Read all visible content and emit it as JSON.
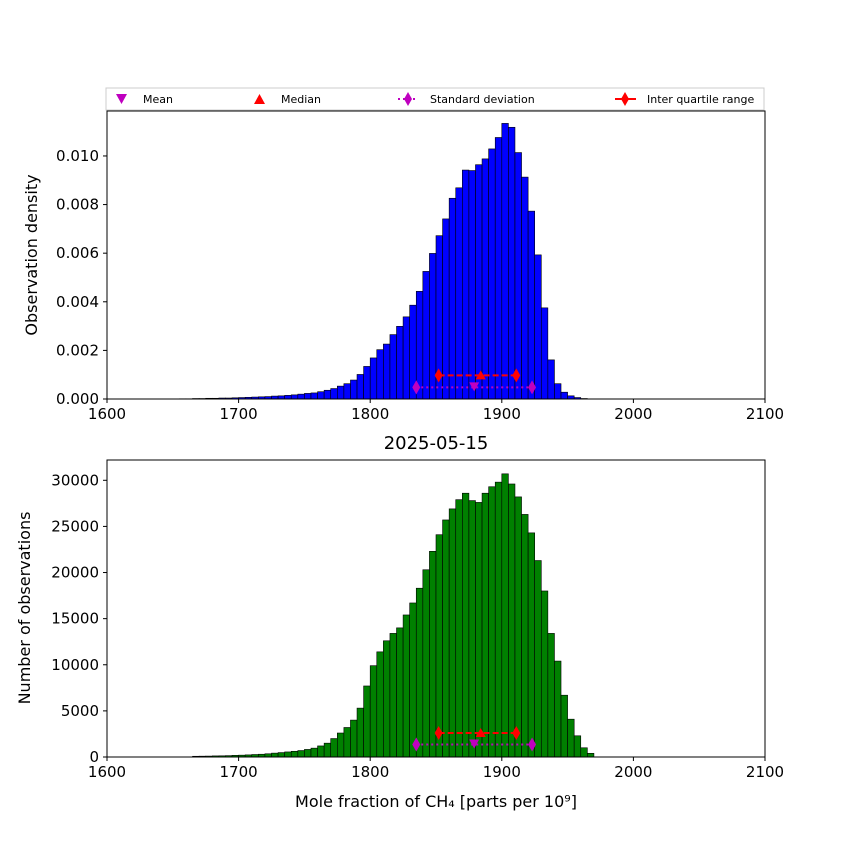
{
  "legend": {
    "entries": [
      {
        "label": "Mean",
        "marker": "triangle-down",
        "color": "#bf00bf"
      },
      {
        "label": "Median",
        "marker": "triangle-up",
        "color": "#ff0000"
      },
      {
        "label": "Standard deviation",
        "marker": "thin-diamond-dotted",
        "color": "#bf00bf"
      },
      {
        "label": "Inter quartile range",
        "marker": "thin-diamond-dashed",
        "color": "#ff0000"
      }
    ]
  },
  "chart_data": [
    {
      "type": "bar",
      "panel": "top",
      "title": "",
      "xlabel": "",
      "ylabel": "Observation density",
      "xlim": [
        1600,
        2100
      ],
      "ylim": [
        0,
        0.01185
      ],
      "xticks": [
        "1600",
        "1700",
        "1800",
        "1900",
        "2000",
        "2100"
      ],
      "yticks": [
        "0.000",
        "0.002",
        "0.004",
        "0.006",
        "0.008",
        "0.010"
      ],
      "ytick_values": [
        0,
        0.002,
        0.004,
        0.006,
        0.008,
        0.01
      ],
      "bar_color": "#0000ff",
      "bin_start": 1650,
      "bin_width": 5,
      "values": [
        0.0,
        1e-05,
        1e-05,
        2e-05,
        2e-05,
        3e-05,
        3e-05,
        4e-05,
        4e-05,
        5e-05,
        6e-05,
        7e-05,
        8e-05,
        9e-05,
        0.0001,
        0.00012,
        0.00013,
        0.00015,
        0.00017,
        0.0002,
        0.00023,
        0.00025,
        0.0003,
        0.00036,
        0.00043,
        0.00053,
        0.00063,
        0.00078,
        0.00101,
        0.00134,
        0.00169,
        0.00203,
        0.00226,
        0.00265,
        0.00299,
        0.00338,
        0.00386,
        0.00443,
        0.00525,
        0.00599,
        0.00672,
        0.00741,
        0.00826,
        0.00869,
        0.00942,
        0.0094,
        0.00964,
        0.00988,
        0.01029,
        0.01076,
        0.01134,
        0.01118,
        0.01014,
        0.00913,
        0.00773,
        0.00593,
        0.00375,
        0.00161,
        0.00063,
        0.00028,
        0.00013,
        6e-05,
        2e-05
      ],
      "mean": 1879,
      "median": 1884,
      "std_range": [
        1835,
        1923
      ],
      "iqr_range": [
        1852,
        1911
      ],
      "stat_y_low": 0.00048,
      "stat_y_high": 0.00097
    },
    {
      "type": "bar",
      "panel": "bottom",
      "title": "2025-05-15",
      "xlabel": "Mole fraction of CH₄ [parts per 10⁹]",
      "ylabel": "Number of observations",
      "xlim": [
        1600,
        2100
      ],
      "ylim": [
        0,
        32200
      ],
      "xticks": [
        "1600",
        "1700",
        "1800",
        "1900",
        "2000",
        "2100"
      ],
      "yticks": [
        "0",
        "5000",
        "10000",
        "15000",
        "20000",
        "25000",
        "30000"
      ],
      "ytick_values": [
        0,
        5000,
        10000,
        15000,
        20000,
        25000,
        30000
      ],
      "bar_color": "#008000",
      "bin_start": 1665,
      "bin_width": 5,
      "values": [
        80,
        90,
        100,
        120,
        130,
        150,
        180,
        200,
        230,
        270,
        300,
        350,
        420,
        480,
        550,
        620,
        700,
        820,
        960,
        1200,
        1500,
        2000,
        2600,
        3200,
        4000,
        5300,
        7700,
        9900,
        11400,
        12600,
        13400,
        14000,
        15400,
        16700,
        18300,
        20300,
        22300,
        24100,
        25700,
        26900,
        27900,
        28600,
        27800,
        27600,
        28600,
        29300,
        29800,
        30700,
        29600,
        28200,
        26300,
        24300,
        21300,
        18000,
        13400,
        10400,
        6700,
        4100,
        2300,
        1000,
        400
      ],
      "mean": 1879,
      "median": 1884,
      "std_range": [
        1835,
        1923
      ],
      "iqr_range": [
        1852,
        1911
      ],
      "stat_y_low": 1350,
      "stat_y_high": 2600
    }
  ]
}
